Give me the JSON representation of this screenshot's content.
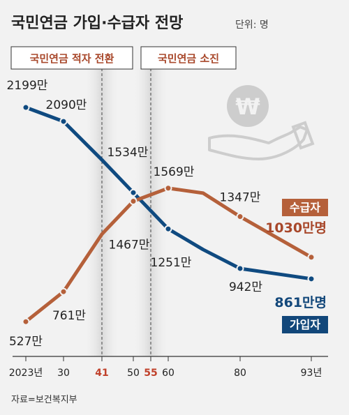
{
  "title": "국민연금 가입·수급자 전망",
  "unit": "단위: 명",
  "callouts": [
    {
      "label": "국민연금 적자 전환",
      "x": 41
    },
    {
      "label": "국민연금 소진",
      "x": 55
    }
  ],
  "source": "자료=보건복지부",
  "colors": {
    "subscribers": "#0f4a80",
    "recipients": "#b5603a",
    "highlight": "#c0412b",
    "background": "#f2f2f2"
  },
  "icon": "won-coin-on-hand-icon",
  "chart_data": {
    "type": "line",
    "x": [
      2023,
      2030,
      2041,
      2050,
      2055,
      2060,
      2070,
      2080,
      2093
    ],
    "x_tick_labels": [
      "2023년",
      "30",
      "41",
      "50",
      "55",
      "60",
      "80",
      "93년"
    ],
    "highlight_ticks": [
      "41",
      "55"
    ],
    "series": [
      {
        "name": "가입자",
        "points": [
          {
            "x": 2023,
            "y": 2199,
            "label": "2199만"
          },
          {
            "x": 2030,
            "y": 2090,
            "label": "2090만"
          },
          {
            "x": 2041,
            "y": 1790,
            "label": ""
          },
          {
            "x": 2050,
            "y": 1534,
            "label": "1534만"
          },
          {
            "x": 2060,
            "y": 1251,
            "label": "1251만"
          },
          {
            "x": 2070,
            "y": 1090,
            "label": ""
          },
          {
            "x": 2080,
            "y": 942,
            "label": "942만"
          },
          {
            "x": 2093,
            "y": 861,
            "label": ""
          }
        ],
        "end_label": "861만명"
      },
      {
        "name": "수급자",
        "points": [
          {
            "x": 2023,
            "y": 527,
            "label": "527만"
          },
          {
            "x": 2030,
            "y": 761,
            "label": "761만"
          },
          {
            "x": 2041,
            "y": 1210,
            "label": ""
          },
          {
            "x": 2050,
            "y": 1467,
            "label": "1467만"
          },
          {
            "x": 2060,
            "y": 1569,
            "label": "1569만"
          },
          {
            "x": 2070,
            "y": 1530,
            "label": ""
          },
          {
            "x": 2080,
            "y": 1347,
            "label": "1347만"
          },
          {
            "x": 2093,
            "y": 1030,
            "label": ""
          }
        ],
        "end_label": "1030만명"
      }
    ]
  }
}
